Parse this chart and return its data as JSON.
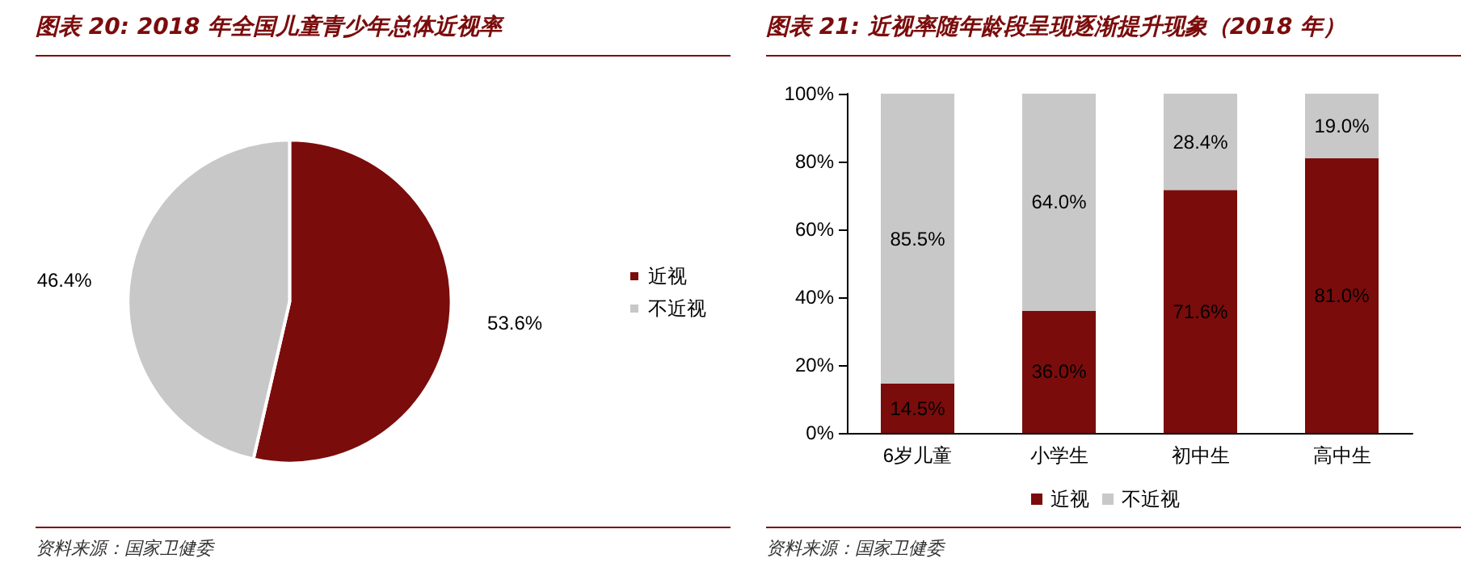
{
  "chart_data": [
    {
      "type": "pie",
      "title": "图表 20: 2018 年全国儿童青少年总体近视率",
      "categories": [
        "近视",
        "不近视"
      ],
      "values": [
        53.6,
        46.4
      ],
      "colors": [
        "#7b0c0c",
        "#c8c8c8"
      ],
      "value_labels": [
        "53.6%",
        "46.4%"
      ],
      "legend": "right",
      "annotations": [
        "资料来源：国家卫健委"
      ]
    },
    {
      "type": "bar",
      "title": "图表 21: 近视率随年龄段呈现逐渐提升现象（2018 年）",
      "categories": [
        "6岁儿童",
        "小学生",
        "初中生",
        "高中生"
      ],
      "stacked": true,
      "series": [
        {
          "name": "近视",
          "color": "#7b0c0c",
          "values": [
            14.5,
            36.0,
            71.6,
            81.0
          ],
          "value_labels": [
            "14.5%",
            "36.0%",
            "71.6%",
            "81.0%"
          ]
        },
        {
          "name": "不近视",
          "color": "#c8c8c8",
          "values": [
            85.5,
            64.0,
            28.4,
            19.0
          ],
          "value_labels": [
            "85.5%",
            "64.0%",
            "28.4%",
            "19.0%"
          ]
        }
      ],
      "ylim": [
        0,
        100
      ],
      "yticks": [
        {
          "value": 0,
          "label": "0%"
        },
        {
          "value": 20,
          "label": "20%"
        },
        {
          "value": 40,
          "label": "40%"
        },
        {
          "value": 60,
          "label": "60%"
        },
        {
          "value": 80,
          "label": "80%"
        },
        {
          "value": 100,
          "label": "100%"
        }
      ],
      "grid": false,
      "legend": "bottom",
      "annotations": [
        "资料来源：国家卫健委"
      ]
    }
  ]
}
